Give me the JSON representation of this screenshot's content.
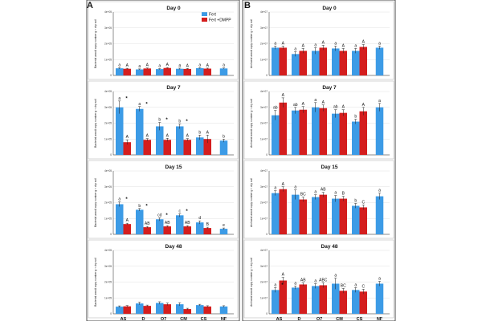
{
  "panel_labels": [
    "A",
    "B"
  ],
  "legend": [
    "Fert",
    "Fert +DMPP"
  ],
  "colors": {
    "fert": "#3c9be6",
    "dmpp": "#d41e1e",
    "nf": "#3c9be6"
  },
  "chart_data": [
    {
      "type": "bar",
      "panel": "A",
      "title": "Day 0",
      "ylabel": "Bacterial amoA copy number g⁻¹ dry soil",
      "yticks": [
        "0",
        "1e+05",
        "2e+05",
        "3e+05",
        "4e+05"
      ],
      "ylim": [
        0,
        400000
      ],
      "categories": [
        "AS",
        "D",
        "O7",
        "CM",
        "CS",
        "NF"
      ],
      "series": [
        {
          "name": "Fert",
          "values": [
            45000,
            38000,
            40000,
            42000,
            46000,
            44000
          ],
          "errors": [
            4000,
            3000,
            3000,
            4000,
            3000,
            3000
          ],
          "letters": [
            "a",
            "a",
            "a",
            "a",
            "a",
            "a"
          ]
        },
        {
          "name": "Fert +DMPP",
          "values": [
            42000,
            44000,
            47000,
            41000,
            43000,
            null
          ],
          "errors": [
            3000,
            3000,
            3000,
            3000,
            3000,
            null
          ],
          "letters": [
            "A",
            "A",
            "A",
            "A",
            "A",
            ""
          ]
        }
      ],
      "stars": [
        false,
        false,
        false,
        false,
        false
      ]
    },
    {
      "type": "bar",
      "panel": "A",
      "title": "Day 7",
      "ylabel": "Bacterial amoA copy number g⁻¹ dry soil",
      "yticks": [
        "0",
        "1e+05",
        "2e+05",
        "3e+05",
        "4e+05"
      ],
      "ylim": [
        0,
        400000
      ],
      "categories": [
        "AS",
        "D",
        "O7",
        "CM",
        "CS",
        "NF"
      ],
      "series": [
        {
          "name": "Fert",
          "values": [
            300000,
            290000,
            180000,
            180000,
            110000,
            90000
          ],
          "errors": [
            40000,
            15000,
            25000,
            15000,
            15000,
            10000
          ],
          "letters": [
            "a",
            "a",
            "b",
            "b",
            "b",
            "b"
          ]
        },
        {
          "name": "Fert +DMPP",
          "values": [
            80000,
            95000,
            95000,
            95000,
            100000,
            null
          ],
          "errors": [
            15000,
            8000,
            10000,
            8000,
            25000,
            null
          ],
          "letters": [
            "A",
            "A",
            "A",
            "A",
            "A",
            ""
          ]
        }
      ],
      "stars": [
        true,
        true,
        true,
        true,
        false
      ]
    },
    {
      "type": "bar",
      "panel": "A",
      "title": "Day 15",
      "ylabel": "Bacterial amoA copy number g⁻¹ dry soil",
      "yticks": [
        "0",
        "1e+05",
        "2e+05",
        "3e+05",
        "4e+05"
      ],
      "ylim": [
        0,
        400000
      ],
      "categories": [
        "AS",
        "D",
        "O7",
        "CM",
        "CS",
        "NF"
      ],
      "series": [
        {
          "name": "Fert",
          "values": [
            190000,
            155000,
            95000,
            120000,
            75000,
            35000
          ],
          "errors": [
            15000,
            8000,
            10000,
            10000,
            10000,
            5000
          ],
          "letters": [
            "a",
            "b",
            "cd",
            "c",
            "d",
            "e"
          ]
        },
        {
          "name": "Fert +DMPP",
          "values": [
            65000,
            45000,
            50000,
            50000,
            40000,
            null
          ],
          "errors": [
            5000,
            5000,
            5000,
            5000,
            5000,
            null
          ],
          "letters": [
            "A",
            "AB",
            "AB",
            "AB",
            "B",
            ""
          ]
        }
      ],
      "stars": [
        true,
        true,
        true,
        true,
        false
      ]
    },
    {
      "type": "bar",
      "panel": "A",
      "title": "Day 48",
      "ylabel": "Bacterial amoA copy number g⁻¹ dry soil",
      "yticks": [
        "0",
        "1e+05",
        "2e+05",
        "3e+05",
        "4e+05"
      ],
      "ylim": [
        0,
        400000
      ],
      "categories": [
        "AS",
        "D",
        "O7",
        "CM",
        "CS",
        "NF"
      ],
      "series": [
        {
          "name": "Fert",
          "values": [
            45000,
            65000,
            68000,
            60000,
            55000,
            46000
          ],
          "errors": [
            5000,
            8000,
            8000,
            10000,
            5000,
            5000
          ],
          "letters": [
            "",
            "",
            "",
            "",
            "",
            ""
          ]
        },
        {
          "name": "Fert +DMPP",
          "values": [
            47000,
            50000,
            60000,
            30000,
            46000,
            null
          ],
          "errors": [
            5000,
            5000,
            8000,
            5000,
            5000,
            null
          ],
          "letters": [
            "",
            "",
            "",
            "",
            "",
            ""
          ]
        }
      ],
      "stars": [
        false,
        false,
        false,
        false,
        false
      ]
    },
    {
      "type": "bar",
      "panel": "B",
      "title": "Day 0",
      "ylabel": "Archaeal amoA copy number g⁻¹ dry soil",
      "yticks": [
        "0",
        "1e+07",
        "2e+07",
        "3e+07",
        "4e+07"
      ],
      "ylim": [
        0,
        40000000
      ],
      "categories": [
        "AS",
        "D",
        "O7",
        "CM",
        "CS",
        "NF"
      ],
      "series": [
        {
          "name": "Fert",
          "values": [
            17500000,
            13500000,
            15500000,
            17000000,
            15500000,
            17500000
          ],
          "errors": [
            1000000,
            1500000,
            2000000,
            1500000,
            1500000,
            1000000
          ],
          "letters": [
            "a",
            "a",
            "a",
            "a",
            "a",
            "a"
          ]
        },
        {
          "name": "Fert +DMPP",
          "values": [
            17500000,
            15500000,
            17500000,
            15500000,
            18000000,
            null
          ],
          "errors": [
            1000000,
            1500000,
            1500000,
            1500000,
            1500000,
            null
          ],
          "letters": [
            "A",
            "A",
            "A",
            "A",
            "A",
            ""
          ]
        }
      ],
      "stars": [
        false,
        false,
        false,
        false,
        false
      ]
    },
    {
      "type": "bar",
      "panel": "B",
      "title": "Day 7",
      "ylabel": "Archaeal amoA copy number g⁻¹ dry soil",
      "yticks": [
        "0",
        "1e+07",
        "2e+07",
        "3e+07",
        "4e+07"
      ],
      "ylim": [
        0,
        40000000
      ],
      "categories": [
        "AS",
        "D",
        "O7",
        "CM",
        "CS",
        "NF"
      ],
      "series": [
        {
          "name": "Fert",
          "values": [
            25000000,
            28000000,
            30000000,
            26000000,
            21000000,
            30000000
          ],
          "errors": [
            3000000,
            2000000,
            3000000,
            2500000,
            1500000,
            2500000
          ],
          "letters": [
            "ab",
            "ab",
            "a",
            "ab",
            "b",
            "a"
          ]
        },
        {
          "name": "Fert +DMPP",
          "values": [
            33000000,
            28500000,
            29500000,
            26500000,
            27500000,
            null
          ],
          "errors": [
            3000000,
            2000000,
            2000000,
            2000000,
            2500000,
            null
          ],
          "letters": [
            "A",
            "A",
            "A",
            "A",
            "A",
            ""
          ]
        }
      ],
      "stars": [
        false,
        false,
        false,
        false,
        false
      ]
    },
    {
      "type": "bar",
      "panel": "B",
      "title": "Day 15",
      "ylabel": "Archaeal amoA copy number g⁻¹ dry soil",
      "yticks": [
        "0",
        "1e+07",
        "2e+07",
        "3e+07",
        "4e+07"
      ],
      "ylim": [
        0,
        40000000
      ],
      "categories": [
        "AS",
        "D",
        "O7",
        "CM",
        "CS",
        "NF"
      ],
      "series": [
        {
          "name": "Fert",
          "values": [
            26000000,
            25000000,
            23500000,
            22500000,
            18000000,
            24000000
          ],
          "errors": [
            1500000,
            3000000,
            1500000,
            2000000,
            1500000,
            2000000
          ],
          "letters": [
            "a",
            "a",
            "a",
            "a",
            "b",
            "a"
          ]
        },
        {
          "name": "Fert +DMPP",
          "values": [
            28500000,
            22000000,
            25000000,
            22500000,
            17000000,
            null
          ],
          "errors": [
            1500000,
            1500000,
            1500000,
            1500000,
            1500000,
            null
          ],
          "letters": [
            "A",
            "BC",
            "AB",
            "B",
            "C",
            ""
          ]
        }
      ],
      "stars": [
        false,
        false,
        false,
        false,
        false
      ]
    },
    {
      "type": "bar",
      "panel": "B",
      "title": "Day 48",
      "ylabel": "Archaeal amoA copy number g⁻¹ dry soil",
      "yticks": [
        "0",
        "1e+07",
        "2e+07",
        "3e+07",
        "4e+07"
      ],
      "ylim": [
        0,
        40000000
      ],
      "categories": [
        "AS",
        "D",
        "O7",
        "CM",
        "CS",
        "NF"
      ],
      "series": [
        {
          "name": "Fert",
          "values": [
            15000000,
            16500000,
            17500000,
            19000000,
            15000000,
            19000000
          ],
          "errors": [
            1500000,
            1000000,
            1500000,
            3500000,
            1500000,
            1500000
          ],
          "letters": [
            "a",
            "a",
            "a",
            "a",
            "a",
            "a"
          ]
        },
        {
          "name": "Fert +DMPP",
          "values": [
            21000000,
            18500000,
            18000000,
            14500000,
            14000000,
            null
          ],
          "errors": [
            2000000,
            1000000,
            1500000,
            1500000,
            1500000,
            null
          ],
          "letters": [
            "A",
            "AB",
            "ABC",
            "BC",
            "C",
            ""
          ]
        }
      ],
      "stars": [
        true,
        false,
        false,
        false,
        false
      ]
    }
  ]
}
